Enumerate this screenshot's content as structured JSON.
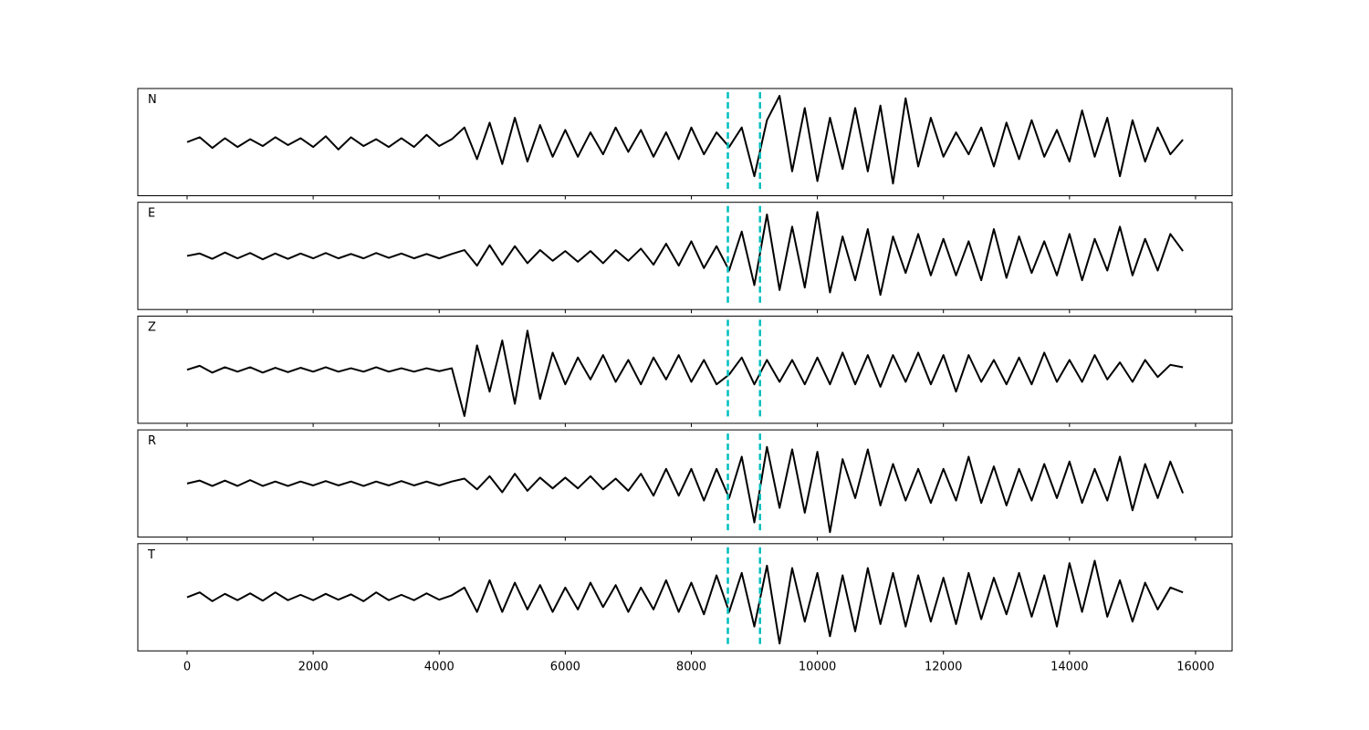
{
  "chart_data": {
    "type": "line",
    "layout": "stacked-panels",
    "x": [
      0,
      200,
      400,
      600,
      800,
      1000,
      1200,
      1400,
      1600,
      1800,
      2000,
      2200,
      2400,
      2600,
      2800,
      3000,
      3200,
      3400,
      3600,
      3800,
      4000,
      4200,
      4400,
      4600,
      4800,
      5000,
      5200,
      5400,
      5600,
      5800,
      6000,
      6200,
      6400,
      6600,
      6800,
      7000,
      7200,
      7400,
      7600,
      7800,
      8000,
      8200,
      8400,
      8600,
      8800,
      9000,
      9200,
      9400,
      9600,
      9800,
      10000,
      10200,
      10400,
      10600,
      10800,
      11000,
      11200,
      11400,
      11600,
      11800,
      12000,
      12200,
      12400,
      12600,
      12800,
      13000,
      13200,
      13400,
      13600,
      13800,
      14000,
      14200,
      14400,
      14600,
      14800,
      15000,
      15200,
      15400,
      15600,
      15800
    ],
    "xlim": [
      -782,
      16580
    ],
    "xticks": [
      0,
      2000,
      4000,
      6000,
      8000,
      10000,
      12000,
      14000,
      16000
    ],
    "ylim": [
      -1.1,
      1.1
    ],
    "series": [
      {
        "name": "N",
        "color": "#000000",
        "values": [
          0,
          0.1,
          -0.12,
          0.08,
          -0.1,
          0.06,
          -0.08,
          0.1,
          -0.06,
          0.08,
          -0.1,
          0.12,
          -0.15,
          0.1,
          -0.08,
          0.06,
          -0.1,
          0.08,
          -0.1,
          0.15,
          -0.08,
          0.06,
          0.3,
          -0.35,
          0.4,
          -0.45,
          0.5,
          -0.4,
          0.35,
          -0.3,
          0.25,
          -0.3,
          0.2,
          -0.25,
          0.3,
          -0.2,
          0.25,
          -0.3,
          0.2,
          -0.35,
          0.3,
          -0.25,
          0.2,
          -0.1,
          0.3,
          -0.7,
          0.45,
          0.95,
          -0.6,
          0.7,
          -0.8,
          0.5,
          -0.55,
          0.7,
          -0.6,
          0.75,
          -0.85,
          0.9,
          -0.5,
          0.5,
          -0.3,
          0.2,
          -0.25,
          0.3,
          -0.5,
          0.4,
          -0.35,
          0.45,
          -0.3,
          0.25,
          -0.4,
          0.65,
          -0.3,
          0.5,
          -0.7,
          0.45,
          -0.4,
          0.3,
          -0.25,
          0.05
        ]
      },
      {
        "name": "E",
        "color": "#000000",
        "values": [
          0,
          0.05,
          -0.06,
          0.07,
          -0.05,
          0.06,
          -0.07,
          0.05,
          -0.06,
          0.05,
          -0.05,
          0.06,
          -0.05,
          0.04,
          -0.05,
          0.06,
          -0.04,
          0.05,
          -0.05,
          0.04,
          -0.05,
          0.04,
          0.12,
          -0.2,
          0.22,
          -0.18,
          0.2,
          -0.15,
          0.12,
          -0.1,
          0.1,
          -0.12,
          0.1,
          -0.15,
          0.12,
          -0.1,
          0.15,
          -0.18,
          0.25,
          -0.2,
          0.3,
          -0.25,
          0.2,
          -0.3,
          0.5,
          -0.6,
          0.85,
          -0.7,
          0.6,
          -0.65,
          0.9,
          -0.75,
          0.4,
          -0.5,
          0.55,
          -0.8,
          0.4,
          -0.35,
          0.45,
          -0.4,
          0.35,
          -0.4,
          0.3,
          -0.5,
          0.55,
          -0.45,
          0.4,
          -0.35,
          0.3,
          -0.4,
          0.45,
          -0.5,
          0.35,
          -0.3,
          0.6,
          -0.4,
          0.35,
          -0.3,
          0.45,
          0.1
        ]
      },
      {
        "name": "Z",
        "color": "#000000",
        "values": [
          0,
          0.08,
          -0.06,
          0.05,
          -0.04,
          0.05,
          -0.06,
          0.04,
          -0.05,
          0.04,
          -0.04,
          0.05,
          -0.04,
          0.03,
          -0.04,
          0.05,
          -0.04,
          0.03,
          -0.04,
          0.03,
          -0.03,
          0.03,
          -0.95,
          0.5,
          -0.45,
          0.6,
          -0.7,
          0.8,
          -0.6,
          0.35,
          -0.3,
          0.25,
          -0.2,
          0.3,
          -0.25,
          0.2,
          -0.3,
          0.25,
          -0.2,
          0.3,
          -0.25,
          0.2,
          -0.3,
          -0.1,
          0.25,
          -0.3,
          0.2,
          -0.25,
          0.2,
          -0.3,
          0.25,
          -0.3,
          0.35,
          -0.3,
          0.3,
          -0.35,
          0.3,
          -0.25,
          0.35,
          -0.3,
          0.3,
          -0.45,
          0.3,
          -0.25,
          0.2,
          -0.3,
          0.25,
          -0.3,
          0.35,
          -0.25,
          0.2,
          -0.25,
          0.3,
          -0.2,
          0.15,
          -0.25,
          0.2,
          -0.15,
          0.1,
          0.05
        ]
      },
      {
        "name": "R",
        "color": "#000000",
        "values": [
          0,
          0.06,
          -0.05,
          0.06,
          -0.05,
          0.07,
          -0.05,
          0.04,
          -0.05,
          0.04,
          -0.04,
          0.05,
          -0.04,
          0.04,
          -0.05,
          0.04,
          -0.04,
          0.05,
          -0.04,
          0.04,
          -0.04,
          0.04,
          0.1,
          -0.12,
          0.15,
          -0.18,
          0.2,
          -0.15,
          0.12,
          -0.1,
          0.12,
          -0.1,
          0.15,
          -0.12,
          0.1,
          -0.15,
          0.2,
          -0.25,
          0.3,
          -0.25,
          0.3,
          -0.35,
          0.3,
          -0.3,
          0.55,
          -0.8,
          0.75,
          -0.5,
          0.7,
          -0.6,
          0.65,
          -1.0,
          0.5,
          -0.3,
          0.7,
          -0.45,
          0.4,
          -0.35,
          0.3,
          -0.4,
          0.3,
          -0.35,
          0.55,
          -0.4,
          0.35,
          -0.45,
          0.3,
          -0.35,
          0.4,
          -0.3,
          0.45,
          -0.4,
          0.3,
          -0.35,
          0.55,
          -0.55,
          0.4,
          -0.3,
          0.45,
          -0.2
        ]
      },
      {
        "name": "T",
        "color": "#000000",
        "values": [
          0,
          0.1,
          -0.08,
          0.07,
          -0.06,
          0.08,
          -0.07,
          0.1,
          -0.06,
          0.05,
          -0.06,
          0.07,
          -0.05,
          0.06,
          -0.08,
          0.1,
          -0.06,
          0.05,
          -0.06,
          0.08,
          -0.05,
          0.04,
          0.2,
          -0.3,
          0.35,
          -0.3,
          0.3,
          -0.25,
          0.25,
          -0.3,
          0.2,
          -0.25,
          0.3,
          -0.2,
          0.25,
          -0.3,
          0.2,
          -0.25,
          0.35,
          -0.3,
          0.3,
          -0.35,
          0.45,
          -0.3,
          0.5,
          -0.6,
          0.65,
          -0.95,
          0.6,
          -0.5,
          0.5,
          -0.8,
          0.45,
          -0.7,
          0.6,
          -0.55,
          0.5,
          -0.6,
          0.45,
          -0.5,
          0.4,
          -0.55,
          0.5,
          -0.45,
          0.4,
          -0.35,
          0.5,
          -0.4,
          0.45,
          -0.6,
          0.7,
          -0.3,
          0.75,
          -0.4,
          0.35,
          -0.5,
          0.3,
          -0.25,
          0.2,
          0.1
        ]
      }
    ],
    "vlines": {
      "color": "#00bfbf",
      "x": [
        8580,
        9090
      ]
    }
  }
}
